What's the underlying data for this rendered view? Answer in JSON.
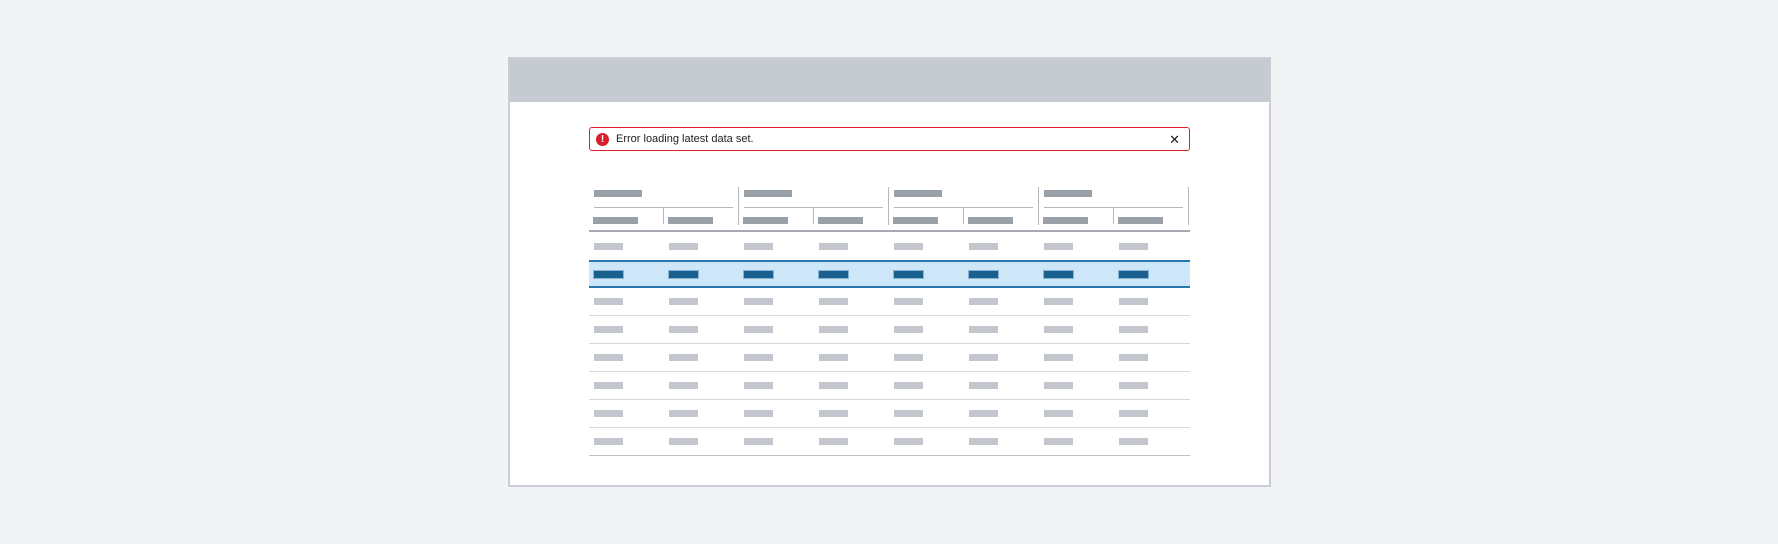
{
  "alert": {
    "message": "Error loading latest data set.",
    "severity": "error",
    "icon_glyph": "!",
    "close_glyph": "✕"
  },
  "table": {
    "group_count": 4,
    "subcolumns_per_group": 2,
    "column_count": 8,
    "body_row_count": 8,
    "selected_row_number": 2
  },
  "colors": {
    "page_bg": "#f1f3f5",
    "card_bg": "#ffffff",
    "card_border": "#c9ced5",
    "band": "#c6cbd2",
    "alert_border": "#e0212f",
    "alert_icon_bg": "#d91e2b",
    "alert_text": "#1f1f1f",
    "header_bar": "#9aa0a8",
    "body_bar": "#c3c7cd",
    "line": "#b4b8bd",
    "header_border": "#a6abb1",
    "row_separator": "#d8d8d8",
    "table_bottom": "#c2c2c2",
    "selected_bg": "#cde7f9",
    "selected_bar": "#19608f",
    "selected_border": "#2a77ac"
  }
}
